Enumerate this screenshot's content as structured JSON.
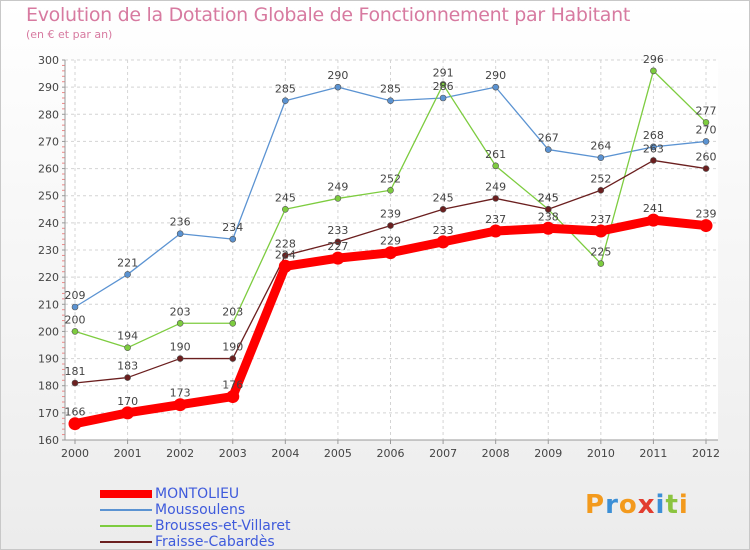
{
  "title": "Evolution de la Dotation Globale de Fonctionnement par Habitant",
  "subtitle": "(en € et par an)",
  "logo": {
    "text": "Proxiti",
    "letters": [
      "P",
      "r",
      "o",
      "x",
      "i",
      "t",
      "i"
    ],
    "colors": [
      "#f39a1d",
      "#3c8fd6",
      "#f39a1d",
      "#e23c2f",
      "#3c8fd6",
      "#8bc43f",
      "#f39a1d"
    ]
  },
  "chart_data": {
    "type": "line",
    "title": "Evolution de la Dotation Globale de Fonctionnement par Habitant",
    "subtitle": "(en € et par an)",
    "xlabel": "",
    "ylabel": "",
    "x": [
      "2000",
      "2001",
      "2002",
      "2003",
      "2004",
      "2005",
      "2006",
      "2007",
      "2008",
      "2009",
      "2010",
      "2011",
      "2012"
    ],
    "ylim": [
      160,
      300
    ],
    "yticks": [
      "160",
      "170",
      "180",
      "190",
      "200",
      "210",
      "220",
      "230",
      "240",
      "250",
      "260",
      "270",
      "280",
      "290",
      "300"
    ],
    "grid": true,
    "legend_position": "bottom-left",
    "series": [
      {
        "name": "Moussoulens",
        "color": "#5b93d2",
        "values": [
          209,
          221,
          236,
          234,
          285,
          290,
          285,
          286,
          290,
          267,
          264,
          268,
          270
        ],
        "labels": [
          "209",
          "221",
          "236",
          "234",
          "285",
          "290",
          "285",
          "286",
          "290",
          "267",
          "264",
          "268",
          "270"
        ]
      },
      {
        "name": "Brousses-et-Villaret",
        "color": "#7dcc3f",
        "values": [
          200,
          194,
          203,
          203,
          245,
          249,
          252,
          291,
          261,
          245,
          225,
          296,
          277
        ],
        "labels": [
          "200",
          "194",
          "203",
          "203",
          "245",
          "249",
          "252",
          "291",
          "261",
          "245",
          "225",
          "296",
          "277"
        ]
      },
      {
        "name": "Fraisse-Cabardès",
        "color": "#6b1f1f",
        "values": [
          181,
          183,
          190,
          190,
          228,
          233,
          239,
          245,
          249,
          245,
          252,
          263,
          260
        ],
        "labels": [
          "181",
          "183",
          "190",
          "190",
          "228",
          "233",
          "239",
          "245",
          "249",
          "245",
          "252",
          "263",
          "260"
        ]
      },
      {
        "name": "MONTOLIEU",
        "color": "#ff0000",
        "values": [
          166,
          170,
          173,
          176,
          224,
          227,
          229,
          233,
          237,
          238,
          237,
          241,
          239
        ],
        "labels": [
          "166",
          "170",
          "173",
          "176",
          "224",
          "227",
          "229",
          "233",
          "237",
          "238",
          "237",
          "241",
          "239"
        ]
      }
    ]
  }
}
